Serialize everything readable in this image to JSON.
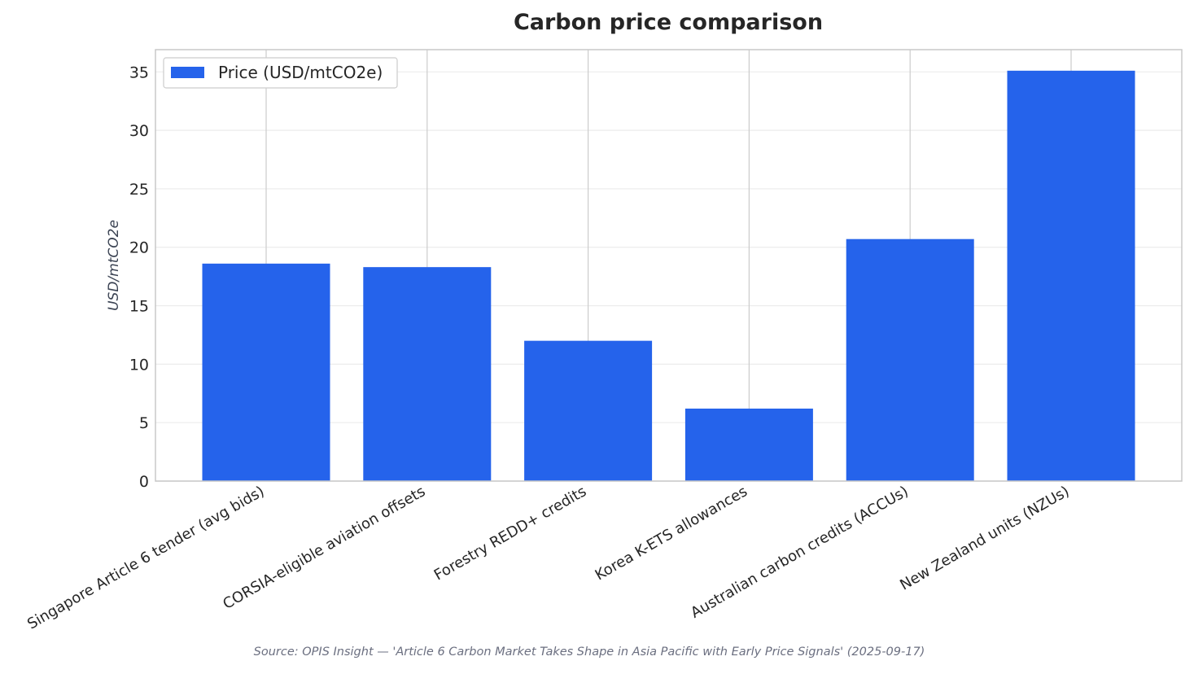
{
  "chart_data": {
    "type": "bar",
    "title": "Carbon price comparison",
    "xlabel": "",
    "ylabel": "USD/mtCO2e",
    "categories": [
      "Singapore Article 6 tender (avg bids)",
      "CORSIA-eligible aviation offsets",
      "Forestry REDD+ credits",
      "Korea K-ETS allowances",
      "Australian carbon credits (ACCUs)",
      "New Zealand units (NZUs)"
    ],
    "series": [
      {
        "name": "Price (USD/mtCO2e)",
        "values": [
          18.6,
          18.3,
          12.0,
          6.2,
          20.7,
          35.1
        ],
        "color": "#2563eb"
      }
    ],
    "ylim": [
      0,
      36.9
    ],
    "yticks": [
      0,
      5,
      10,
      15,
      20,
      25,
      30,
      35
    ],
    "grid": true,
    "legend_position": "upper-left",
    "source_note": "Source: OPIS Insight — 'Article 6 Carbon Market Takes Shape in Asia Pacific with Early Price Signals' (2025-09-17)"
  }
}
